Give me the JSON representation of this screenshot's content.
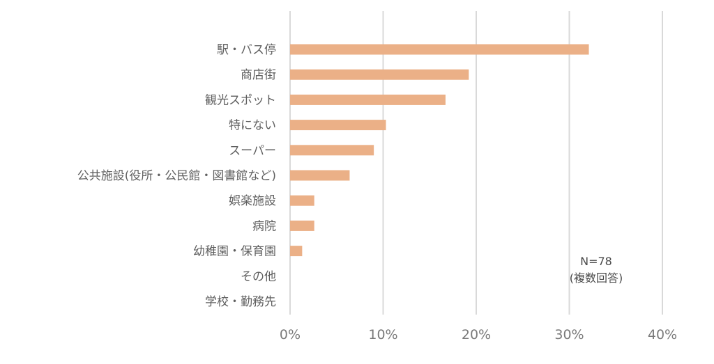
{
  "chart_data": {
    "type": "bar",
    "orientation": "horizontal",
    "categories": [
      "駅・バス停",
      "商店街",
      "観光スポット",
      "特にない",
      "スーパー",
      "公共施設(役所・公民館・図書館など)",
      "娯楽施設",
      "病院",
      "幼稚園・保育園",
      "その他",
      "学校・勤務先"
    ],
    "values": [
      32.1,
      19.2,
      16.7,
      10.3,
      9.0,
      6.4,
      2.6,
      2.6,
      1.3,
      0,
      0
    ],
    "xlim": [
      0,
      40
    ],
    "xticks": [
      0,
      10,
      20,
      30,
      40
    ],
    "xtick_labels": [
      "0%",
      "10%",
      "20%",
      "30%",
      "40%"
    ],
    "grid": true,
    "bar_color": "#ebb087",
    "annotation": [
      "N=78",
      "(複数回答)"
    ]
  }
}
